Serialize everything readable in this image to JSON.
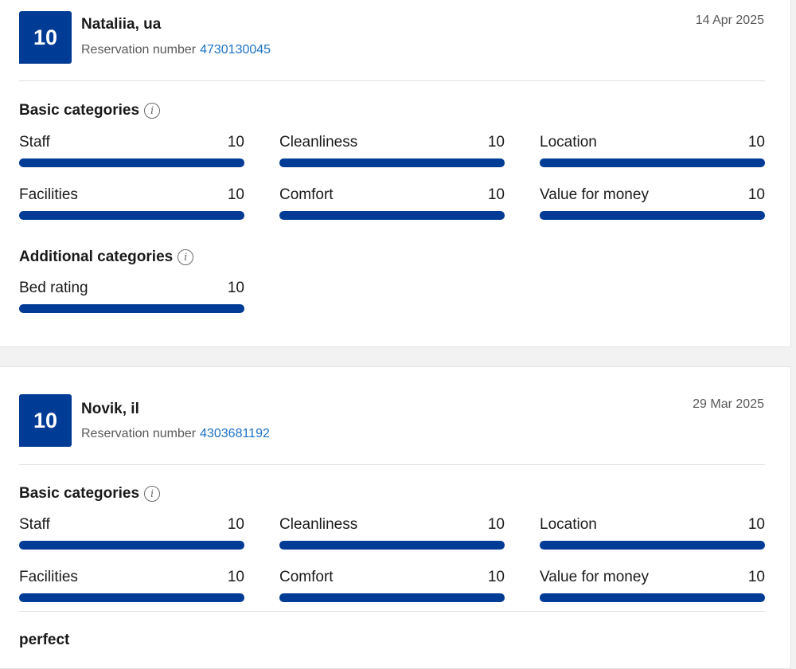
{
  "reviews": [
    {
      "score": "10",
      "name": "Nataliia, ua",
      "reservation_label": "Reservation number",
      "reservation_number": "4730130045",
      "date": "14 Apr 2025",
      "basic_title": "Basic categories",
      "basic": [
        {
          "label": "Staff",
          "value": "10",
          "fraction": 1.0
        },
        {
          "label": "Cleanliness",
          "value": "10",
          "fraction": 1.0
        },
        {
          "label": "Location",
          "value": "10",
          "fraction": 1.0
        },
        {
          "label": "Facilities",
          "value": "10",
          "fraction": 1.0
        },
        {
          "label": "Comfort",
          "value": "10",
          "fraction": 1.0
        },
        {
          "label": "Value for money",
          "value": "10",
          "fraction": 1.0
        }
      ],
      "additional_title": "Additional categories",
      "additional": [
        {
          "label": "Bed rating",
          "value": "10",
          "fraction": 1.0
        }
      ]
    },
    {
      "score": "10",
      "name": "Novik, il",
      "reservation_label": "Reservation number",
      "reservation_number": "4303681192",
      "date": "29 Mar 2025",
      "basic_title": "Basic categories",
      "basic": [
        {
          "label": "Staff",
          "value": "10",
          "fraction": 1.0
        },
        {
          "label": "Cleanliness",
          "value": "10",
          "fraction": 1.0
        },
        {
          "label": "Location",
          "value": "10",
          "fraction": 1.0
        },
        {
          "label": "Facilities",
          "value": "10",
          "fraction": 1.0
        },
        {
          "label": "Comfort",
          "value": "10",
          "fraction": 1.0
        },
        {
          "label": "Value for money",
          "value": "10",
          "fraction": 1.0
        }
      ],
      "comment": "perfect"
    }
  ],
  "icons": {
    "info": "info-icon"
  },
  "colors": {
    "score_bg": "#003b95",
    "bar_fill": "#003b95",
    "link": "#1c72c4"
  }
}
